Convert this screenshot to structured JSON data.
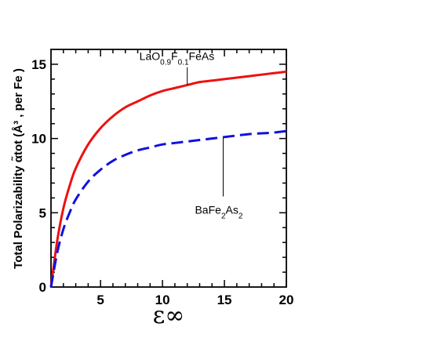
{
  "chart_data": {
    "type": "line",
    "xlabel": "ε∞",
    "ylabel": "Total Polarizability α̃tot (Å³ , per Fe )",
    "xlim": [
      1,
      20
    ],
    "ylim": [
      0,
      16
    ],
    "xticks": [
      5,
      10,
      15,
      20
    ],
    "yticks": [
      0,
      5,
      10,
      15
    ],
    "grid": false,
    "series": [
      {
        "name": "LaO0.9F0.1FeAs",
        "color": "#ee1111",
        "style": "solid",
        "x": [
          1,
          1.5,
          2,
          2.5,
          3,
          4,
          5,
          6,
          7,
          8,
          9,
          10,
          11,
          12,
          13,
          14,
          15,
          16,
          17,
          18,
          19,
          20
        ],
        "y": [
          0,
          3.1,
          5.3,
          6.8,
          8.0,
          9.6,
          10.7,
          11.5,
          12.1,
          12.5,
          12.9,
          13.2,
          13.4,
          13.6,
          13.8,
          13.9,
          14.0,
          14.1,
          14.2,
          14.3,
          14.4,
          14.5
        ]
      },
      {
        "name": "BaFe2As2",
        "color": "#1111dd",
        "style": "dashed",
        "x": [
          1,
          1.5,
          2,
          2.5,
          3,
          4,
          5,
          6,
          7,
          8,
          9,
          10,
          11,
          12,
          13,
          14,
          15,
          16,
          17,
          18,
          19,
          20
        ],
        "y": [
          0,
          2.3,
          3.9,
          5.0,
          5.9,
          7.1,
          7.9,
          8.5,
          8.9,
          9.2,
          9.4,
          9.6,
          9.7,
          9.8,
          9.9,
          10.0,
          10.1,
          10.2,
          10.3,
          10.35,
          10.4,
          10.5
        ]
      }
    ],
    "annotations": [
      {
        "series": 0,
        "label_parts": [
          [
            "LaO",
            ""
          ],
          [
            "0.9",
            "sub"
          ],
          [
            "F",
            ""
          ],
          [
            "0.1",
            "sub"
          ],
          [
            "FeAs",
            ""
          ]
        ],
        "pointer_x": 12,
        "pointer_y": 13.6
      },
      {
        "series": 1,
        "label_parts": [
          [
            "BaFe",
            ""
          ],
          [
            "2",
            "sub"
          ],
          [
            "As",
            ""
          ],
          [
            "2",
            "sub"
          ]
        ],
        "pointer_x": 14.9,
        "pointer_y": 10.05
      }
    ]
  }
}
